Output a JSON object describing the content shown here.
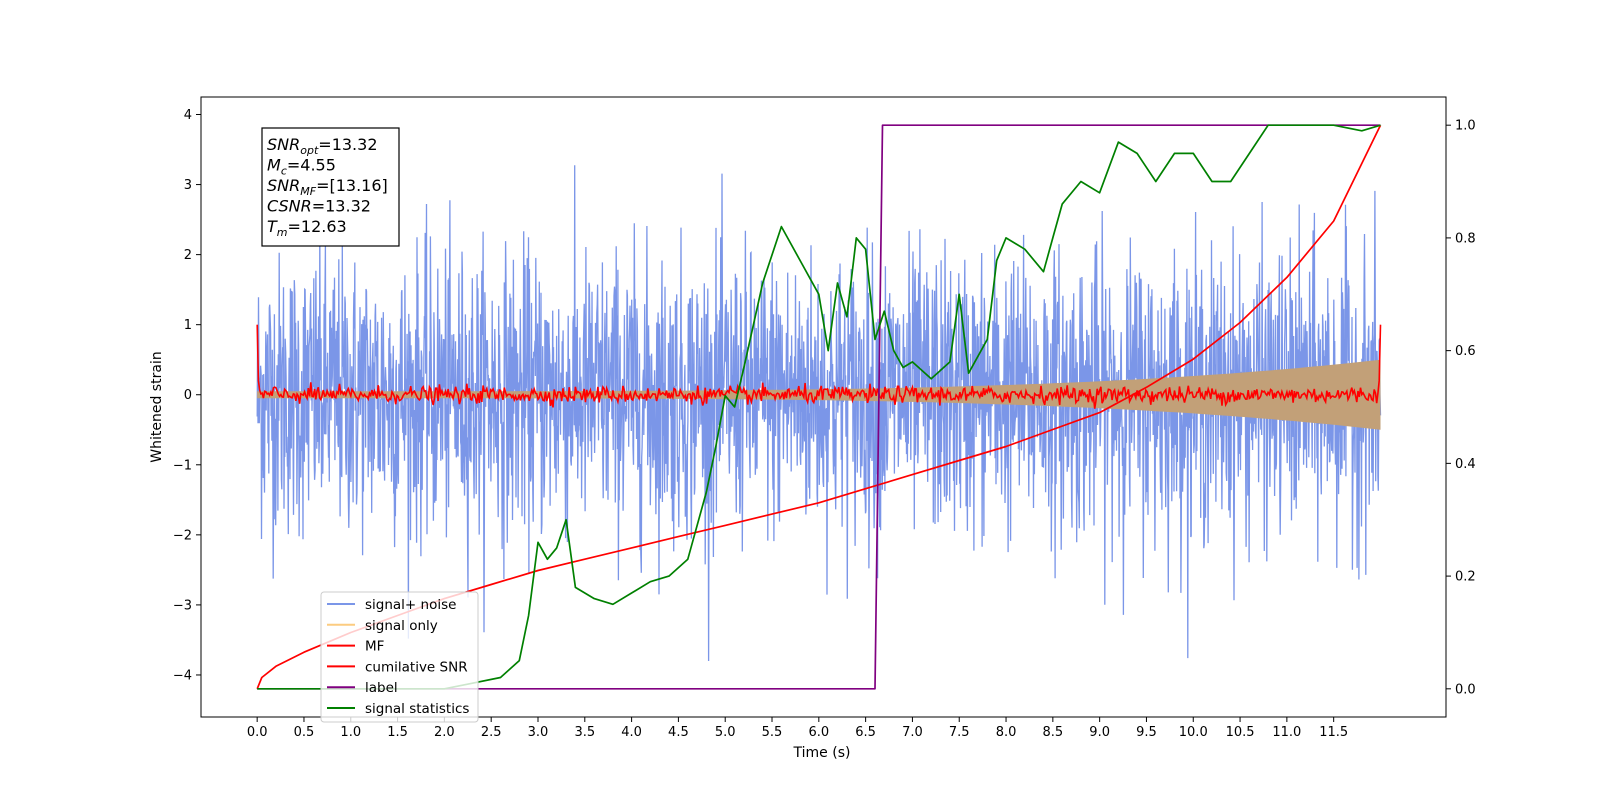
{
  "chart_data": {
    "type": "line",
    "xlabel": "Time (s)",
    "ylabel": "Whitened strain",
    "xlim": [
      -0.6,
      12.7
    ],
    "ylim": [
      -4.6,
      4.25
    ],
    "y2lim": [
      -0.05,
      1.05
    ],
    "xticks": [
      "0.0",
      "0.5",
      "1.0",
      "1.5",
      "2.0",
      "2.5",
      "3.0",
      "3.5",
      "4.0",
      "4.5",
      "5.0",
      "5.5",
      "6.0",
      "6.5",
      "7.0",
      "7.5",
      "8.0",
      "8.5",
      "9.0",
      "9.5",
      "10.0",
      "10.5",
      "11.0",
      "11.5"
    ],
    "yticks": [
      "−4",
      "−3",
      "−2",
      "−1",
      "0",
      "1",
      "2",
      "3",
      "4"
    ],
    "y2ticks": [
      "0.0",
      "0.2",
      "0.4",
      "0.6",
      "0.8",
      "1.0"
    ],
    "legend_position": "lower-left",
    "annotation": {
      "lines": [
        {
          "sym": "SNR",
          "sub": "opt",
          "value": "=13.32"
        },
        {
          "sym": "M",
          "sub": "c",
          "value": "=4.55"
        },
        {
          "sym": "SNR",
          "sub": "MF",
          "value": "=[13.16]"
        },
        {
          "sym": "CSNR",
          "sub": "",
          "value": "=13.32"
        },
        {
          "sym": "T",
          "sub": "m",
          "value": "=12.63"
        }
      ]
    },
    "series": [
      {
        "name": "signal+ noise",
        "color": "#7b96e8",
        "axis": "left",
        "style": "noise",
        "x_range": [
          0,
          12.0
        ],
        "envelope": 2.5
      },
      {
        "name": "signal only",
        "color": "#fccc80",
        "axis": "left",
        "style": "chirp",
        "x_range": [
          0,
          12.0
        ],
        "amp_start": 0.05,
        "amp_end": 0.5
      },
      {
        "name": "MF",
        "color": "#ff0000",
        "axis": "left",
        "style": "mf",
        "x_range": [
          0,
          12.0
        ],
        "edge_value": 1.0,
        "jitter": 0.06
      },
      {
        "name": "cumilative SNR",
        "color": "#ff0000",
        "axis": "right",
        "x": [
          0,
          0.05,
          0.2,
          0.5,
          1.0,
          1.5,
          2.0,
          2.5,
          3.0,
          3.5,
          4.0,
          4.5,
          5.0,
          5.5,
          6.0,
          6.5,
          7.0,
          7.5,
          8.0,
          8.5,
          9.0,
          9.5,
          10.0,
          10.5,
          11.0,
          11.5,
          12.0
        ],
        "y": [
          0.0,
          0.02,
          0.04,
          0.065,
          0.1,
          0.13,
          0.16,
          0.185,
          0.21,
          0.23,
          0.25,
          0.27,
          0.29,
          0.31,
          0.33,
          0.355,
          0.38,
          0.405,
          0.43,
          0.46,
          0.49,
          0.535,
          0.585,
          0.65,
          0.73,
          0.83,
          1.0
        ]
      },
      {
        "name": "label",
        "color": "#800080",
        "axis": "right",
        "x": [
          0,
          6.6,
          6.68,
          12.0
        ],
        "y": [
          0,
          0,
          1,
          1
        ]
      },
      {
        "name": "signal statistics",
        "color": "#008000",
        "axis": "right",
        "x": [
          0,
          0.5,
          1.0,
          1.5,
          2.0,
          2.3,
          2.6,
          2.8,
          2.9,
          3.0,
          3.1,
          3.2,
          3.3,
          3.4,
          3.5,
          3.6,
          3.8,
          4.0,
          4.2,
          4.4,
          4.6,
          4.8,
          4.9,
          5.0,
          5.1,
          5.2,
          5.4,
          5.6,
          5.8,
          6.0,
          6.1,
          6.2,
          6.3,
          6.4,
          6.5,
          6.6,
          6.7,
          6.8,
          6.9,
          7.0,
          7.2,
          7.4,
          7.5,
          7.6,
          7.8,
          7.9,
          8.0,
          8.2,
          8.4,
          8.5,
          8.6,
          8.8,
          9.0,
          9.2,
          9.4,
          9.6,
          9.8,
          10.0,
          10.2,
          10.4,
          10.6,
          10.8,
          11.0,
          11.5,
          11.8,
          12.0
        ],
        "y": [
          0.0,
          0.0,
          0.0,
          0.0,
          0.0,
          0.01,
          0.02,
          0.05,
          0.13,
          0.26,
          0.23,
          0.25,
          0.3,
          0.18,
          0.17,
          0.16,
          0.15,
          0.17,
          0.19,
          0.2,
          0.23,
          0.35,
          0.43,
          0.52,
          0.5,
          0.57,
          0.72,
          0.82,
          0.76,
          0.7,
          0.6,
          0.72,
          0.66,
          0.8,
          0.78,
          0.62,
          0.67,
          0.6,
          0.57,
          0.58,
          0.55,
          0.58,
          0.7,
          0.56,
          0.62,
          0.76,
          0.8,
          0.78,
          0.74,
          0.8,
          0.86,
          0.9,
          0.88,
          0.97,
          0.95,
          0.9,
          0.95,
          0.95,
          0.9,
          0.9,
          0.95,
          1.0,
          1.0,
          1.0,
          0.99,
          1.0
        ]
      }
    ]
  }
}
